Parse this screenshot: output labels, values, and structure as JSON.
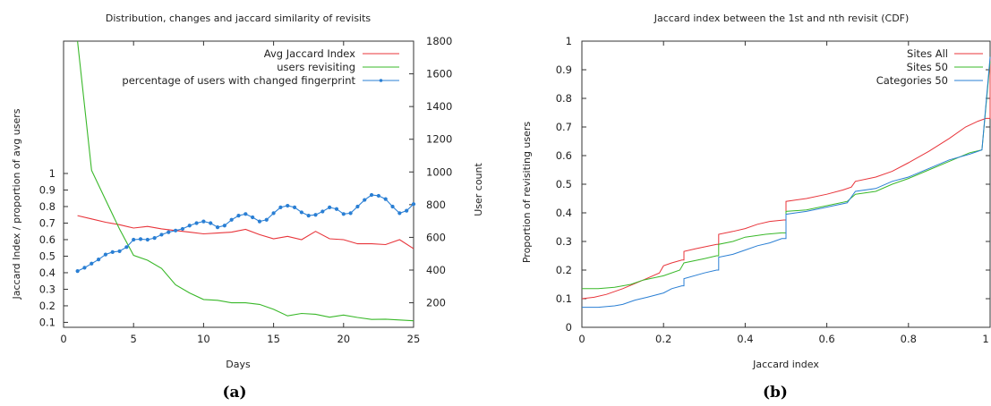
{
  "colors": {
    "red": "#e8343a",
    "green": "#39b829",
    "blue": "#2a7fd4"
  },
  "subcaptions": {
    "a": "(a)",
    "b": "(b)"
  },
  "chart_data": [
    {
      "type": "line",
      "title": "Distribution, changes and jaccard similarity of revisits",
      "xlabel": "Days",
      "ylabel": "Jaccard Index / proportion of avg users",
      "y2label": "User count",
      "xlim": [
        0,
        25
      ],
      "ylim": [
        0.07,
        1.8
      ],
      "y2lim": [
        50,
        1800
      ],
      "x_ticks": [
        "0",
        "5",
        "10",
        "15",
        "20",
        "25"
      ],
      "y_ticks": [
        "0.1",
        "0.2",
        "0.3",
        "0.4",
        "0.5",
        "0.6",
        "0.7",
        "0.8",
        "0.9",
        "1"
      ],
      "y2_ticks": [
        "200",
        "400",
        "600",
        "800",
        "1000",
        "1200",
        "1400",
        "1600",
        "1800"
      ],
      "legend_position": "top-right",
      "series": [
        {
          "name": "Avg Jaccard Index",
          "color": "red",
          "axis": "left",
          "marker": "none",
          "points": [
            [
              1,
              0.745
            ],
            [
              2,
              0.725
            ],
            [
              3,
              0.705
            ],
            [
              4,
              0.69
            ],
            [
              5,
              0.67
            ],
            [
              6,
              0.68
            ],
            [
              7,
              0.665
            ],
            [
              8,
              0.655
            ],
            [
              9,
              0.645
            ],
            [
              10,
              0.635
            ],
            [
              11,
              0.64
            ],
            [
              12,
              0.645
            ],
            [
              13,
              0.662
            ],
            [
              14,
              0.63
            ],
            [
              15,
              0.605
            ],
            [
              16,
              0.62
            ],
            [
              17,
              0.6
            ],
            [
              18,
              0.65
            ],
            [
              19,
              0.605
            ],
            [
              20,
              0.6
            ],
            [
              21,
              0.575
            ],
            [
              22,
              0.575
            ],
            [
              23,
              0.57
            ],
            [
              24,
              0.6
            ],
            [
              25,
              0.545
            ]
          ]
        },
        {
          "name": "users revisiting",
          "color": "green",
          "axis": "right",
          "marker": "none",
          "points": [
            [
              1,
              1800
            ],
            [
              2,
              1010
            ],
            [
              3,
              830
            ],
            [
              4,
              650
            ],
            [
              5,
              490
            ],
            [
              6,
              460
            ],
            [
              7,
              410
            ],
            [
              8,
              310
            ],
            [
              9,
              260
            ],
            [
              10,
              220
            ],
            [
              11,
              215
            ],
            [
              12,
              200
            ],
            [
              13,
              200
            ],
            [
              14,
              190
            ],
            [
              15,
              160
            ],
            [
              16,
              120
            ],
            [
              17,
              135
            ],
            [
              18,
              130
            ],
            [
              19,
              112
            ],
            [
              20,
              125
            ],
            [
              21,
              110
            ],
            [
              22,
              98
            ],
            [
              23,
              100
            ],
            [
              24,
              95
            ],
            [
              25,
              90
            ]
          ]
        },
        {
          "name": "percentage of users with changed fingerprint",
          "color": "blue",
          "axis": "left",
          "marker": "dot",
          "points": [
            [
              1,
              0.41
            ],
            [
              1.5,
              0.43
            ],
            [
              2,
              0.455
            ],
            [
              2.5,
              0.48
            ],
            [
              3,
              0.51
            ],
            [
              3.5,
              0.525
            ],
            [
              4,
              0.53
            ],
            [
              4.5,
              0.555
            ],
            [
              5,
              0.6
            ],
            [
              5.5,
              0.603
            ],
            [
              6,
              0.6
            ],
            [
              6.5,
              0.61
            ],
            [
              7,
              0.63
            ],
            [
              7.5,
              0.645
            ],
            [
              8,
              0.655
            ],
            [
              8.5,
              0.665
            ],
            [
              9,
              0.685
            ],
            [
              9.5,
              0.7
            ],
            [
              10,
              0.71
            ],
            [
              10.5,
              0.7
            ],
            [
              11,
              0.675
            ],
            [
              11.5,
              0.685
            ],
            [
              12,
              0.72
            ],
            [
              12.5,
              0.745
            ],
            [
              13,
              0.755
            ],
            [
              13.5,
              0.735
            ],
            [
              14,
              0.71
            ],
            [
              14.5,
              0.72
            ],
            [
              15,
              0.76
            ],
            [
              15.5,
              0.795
            ],
            [
              16,
              0.805
            ],
            [
              16.5,
              0.795
            ],
            [
              17,
              0.765
            ],
            [
              17.5,
              0.745
            ],
            [
              18,
              0.75
            ],
            [
              18.5,
              0.77
            ],
            [
              19,
              0.795
            ],
            [
              19.5,
              0.785
            ],
            [
              20,
              0.755
            ],
            [
              20.5,
              0.76
            ],
            [
              21,
              0.8
            ],
            [
              21.5,
              0.84
            ],
            [
              22,
              0.87
            ],
            [
              22.5,
              0.865
            ],
            [
              23,
              0.845
            ],
            [
              23.5,
              0.8
            ],
            [
              24,
              0.76
            ],
            [
              24.5,
              0.775
            ],
            [
              25,
              0.815
            ]
          ]
        }
      ]
    },
    {
      "type": "line",
      "title": "Jaccard index between the 1st and nth revisit (CDF)",
      "xlabel": "Jaccard index",
      "ylabel": "Proportion of revisiting users",
      "xlim": [
        0,
        1
      ],
      "ylim": [
        0,
        1
      ],
      "x_ticks": [
        "0",
        "0.2",
        "0.4",
        "0.6",
        "0.8",
        "1"
      ],
      "y_ticks": [
        "0",
        "0.1",
        "0.2",
        "0.3",
        "0.4",
        "0.5",
        "0.6",
        "0.7",
        "0.8",
        "0.9",
        "1"
      ],
      "legend_position": "top-right",
      "series": [
        {
          "name": "Sites All",
          "color": "red",
          "points": [
            [
              0,
              0.1
            ],
            [
              0.03,
              0.105
            ],
            [
              0.06,
              0.115
            ],
            [
              0.1,
              0.135
            ],
            [
              0.15,
              0.165
            ],
            [
              0.19,
              0.19
            ],
            [
              0.2,
              0.215
            ],
            [
              0.22,
              0.225
            ],
            [
              0.245,
              0.235
            ],
            [
              0.25,
              0.265
            ],
            [
              0.28,
              0.275
            ],
            [
              0.33,
              0.29
            ],
            [
              0.335,
              0.325
            ],
            [
              0.37,
              0.335
            ],
            [
              0.4,
              0.345
            ],
            [
              0.43,
              0.36
            ],
            [
              0.46,
              0.37
            ],
            [
              0.495,
              0.375
            ],
            [
              0.5,
              0.44
            ],
            [
              0.55,
              0.45
            ],
            [
              0.6,
              0.465
            ],
            [
              0.64,
              0.48
            ],
            [
              0.66,
              0.49
            ],
            [
              0.67,
              0.51
            ],
            [
              0.72,
              0.525
            ],
            [
              0.76,
              0.545
            ],
            [
              0.8,
              0.575
            ],
            [
              0.85,
              0.615
            ],
            [
              0.9,
              0.66
            ],
            [
              0.94,
              0.7
            ],
            [
              0.97,
              0.72
            ],
            [
              0.99,
              0.73
            ],
            [
              1,
              0.94
            ]
          ]
        },
        {
          "name": "Sites 50",
          "color": "green",
          "points": [
            [
              0,
              0.135
            ],
            [
              0.04,
              0.135
            ],
            [
              0.08,
              0.14
            ],
            [
              0.12,
              0.15
            ],
            [
              0.15,
              0.165
            ],
            [
              0.2,
              0.18
            ],
            [
              0.24,
              0.2
            ],
            [
              0.25,
              0.225
            ],
            [
              0.3,
              0.24
            ],
            [
              0.33,
              0.25
            ],
            [
              0.335,
              0.29
            ],
            [
              0.37,
              0.3
            ],
            [
              0.4,
              0.315
            ],
            [
              0.45,
              0.325
            ],
            [
              0.49,
              0.33
            ],
            [
              0.5,
              0.405
            ],
            [
              0.55,
              0.41
            ],
            [
              0.6,
              0.425
            ],
            [
              0.65,
              0.44
            ],
            [
              0.67,
              0.465
            ],
            [
              0.72,
              0.475
            ],
            [
              0.76,
              0.5
            ],
            [
              0.8,
              0.52
            ],
            [
              0.85,
              0.55
            ],
            [
              0.9,
              0.58
            ],
            [
              0.95,
              0.61
            ],
            [
              0.98,
              0.62
            ],
            [
              1,
              0.93
            ]
          ]
        },
        {
          "name": "Categories 50",
          "color": "blue",
          "points": [
            [
              0,
              0.07
            ],
            [
              0.04,
              0.07
            ],
            [
              0.08,
              0.075
            ],
            [
              0.1,
              0.08
            ],
            [
              0.13,
              0.095
            ],
            [
              0.16,
              0.105
            ],
            [
              0.2,
              0.12
            ],
            [
              0.22,
              0.135
            ],
            [
              0.245,
              0.145
            ],
            [
              0.25,
              0.17
            ],
            [
              0.3,
              0.19
            ],
            [
              0.33,
              0.2
            ],
            [
              0.335,
              0.245
            ],
            [
              0.37,
              0.255
            ],
            [
              0.4,
              0.27
            ],
            [
              0.43,
              0.285
            ],
            [
              0.46,
              0.295
            ],
            [
              0.49,
              0.31
            ],
            [
              0.5,
              0.395
            ],
            [
              0.55,
              0.405
            ],
            [
              0.6,
              0.42
            ],
            [
              0.65,
              0.435
            ],
            [
              0.67,
              0.475
            ],
            [
              0.72,
              0.485
            ],
            [
              0.76,
              0.51
            ],
            [
              0.8,
              0.525
            ],
            [
              0.85,
              0.555
            ],
            [
              0.9,
              0.585
            ],
            [
              0.95,
              0.605
            ],
            [
              0.98,
              0.62
            ],
            [
              1,
              0.945
            ]
          ]
        }
      ]
    }
  ]
}
